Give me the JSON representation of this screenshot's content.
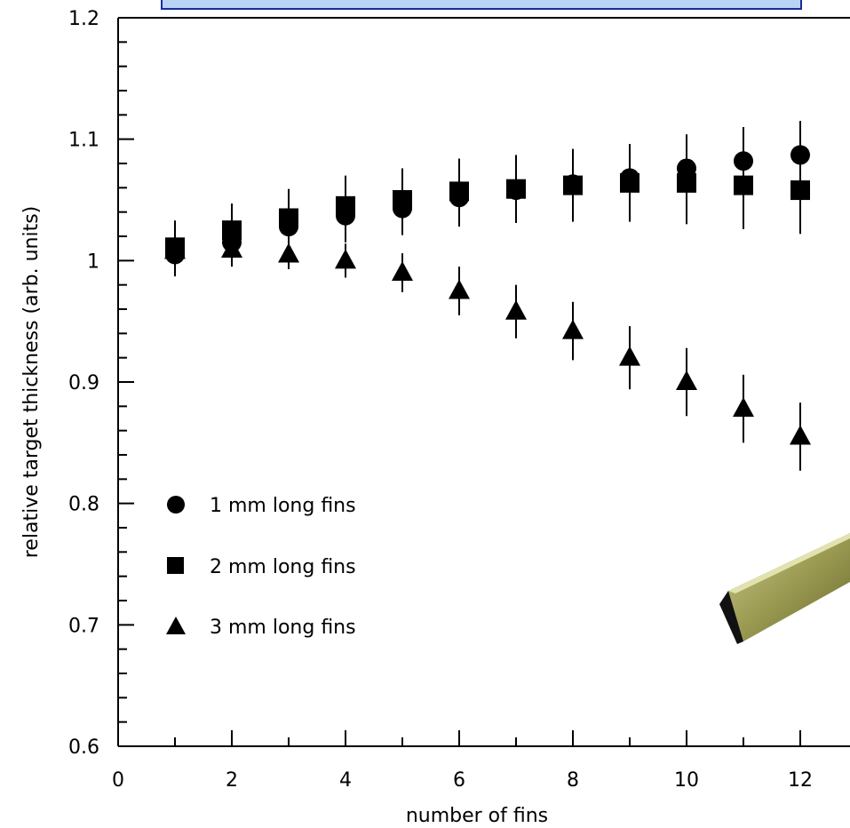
{
  "chart_data": {
    "type": "scatter",
    "xlabel": "number of fins",
    "ylabel": "relative target thickness (arb. units)",
    "xlim": [
      0,
      13
    ],
    "ylim": [
      0.6,
      1.2
    ],
    "xticks": [
      0,
      2,
      4,
      6,
      8,
      10,
      12
    ],
    "xtick_labels": [
      "0",
      "2",
      "4",
      "6",
      "8",
      "10",
      "12"
    ],
    "yticks": [
      0.6,
      0.7,
      0.8,
      0.9,
      1.0,
      1.1,
      1.2
    ],
    "ytick_labels": [
      "0.6",
      "0.7",
      "0.8",
      "0.9",
      "1",
      "1.1",
      "1.2"
    ],
    "grid": false,
    "legend_placement": "lower-left",
    "series": [
      {
        "name": "1 mm long fins",
        "marker": "circle",
        "x": [
          1,
          2,
          3,
          4,
          5,
          6,
          7,
          8,
          9,
          10,
          11,
          12
        ],
        "y": [
          1.005,
          1.015,
          1.028,
          1.037,
          1.043,
          1.052,
          1.058,
          1.063,
          1.068,
          1.076,
          1.082,
          1.087
        ],
        "err": [
          0.018,
          0.02,
          0.02,
          0.022,
          0.022,
          0.024,
          0.026,
          0.027,
          0.028,
          0.028,
          0.028,
          0.028
        ]
      },
      {
        "name": "2 mm long fins",
        "marker": "square",
        "x": [
          1,
          2,
          3,
          4,
          5,
          6,
          7,
          8,
          9,
          10,
          11,
          12
        ],
        "y": [
          1.011,
          1.025,
          1.035,
          1.045,
          1.05,
          1.057,
          1.059,
          1.062,
          1.064,
          1.064,
          1.062,
          1.058
        ],
        "err": [
          0.022,
          0.022,
          0.024,
          0.025,
          0.026,
          0.027,
          0.028,
          0.03,
          0.032,
          0.034,
          0.036,
          0.036
        ]
      },
      {
        "name": "3 mm long fins",
        "marker": "triangle",
        "x": [
          1,
          2,
          3,
          4,
          5,
          6,
          7,
          8,
          9,
          10,
          11,
          12
        ],
        "y": [
          1.008,
          1.009,
          1.005,
          1.0,
          0.99,
          0.975,
          0.958,
          0.942,
          0.92,
          0.9,
          0.878,
          0.855
        ],
        "err": [
          0.012,
          0.012,
          0.012,
          0.014,
          0.016,
          0.02,
          0.022,
          0.024,
          0.026,
          0.028,
          0.028,
          0.028
        ]
      }
    ]
  }
}
